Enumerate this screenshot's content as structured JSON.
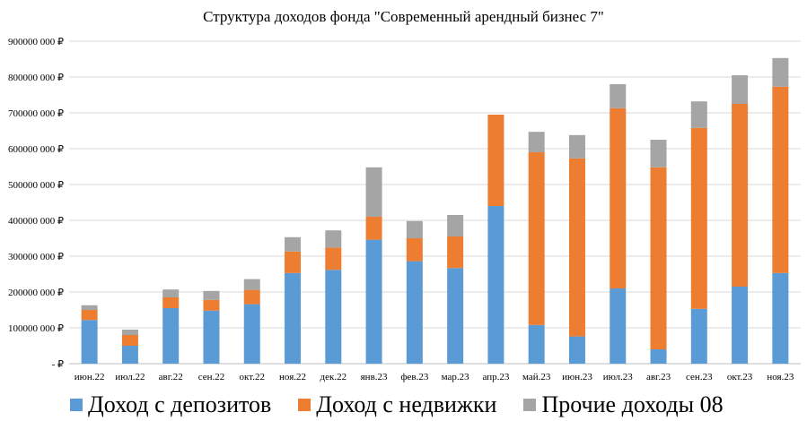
{
  "chart_data": {
    "type": "bar",
    "stacked": true,
    "title": "Структура доходов фонда \"Современный арендный бизнес 7\"",
    "xlabel": "",
    "ylabel": "",
    "ylim": [
      0,
      900000
    ],
    "y_ticks": [
      0,
      100000,
      200000,
      300000,
      400000,
      500000,
      600000,
      700000,
      800000,
      900000
    ],
    "y_tick_labels": [
      "-  ₽",
      "100000 000 ₽",
      "200000 000 ₽",
      "300000 000 ₽",
      "400000 000 ₽",
      "500000 000 ₽",
      "600000 000 ₽",
      "700000 000 ₽",
      "800000 000 ₽",
      "900000 000 ₽"
    ],
    "grid": true,
    "legend_position": "bottom",
    "categories": [
      "июн.22",
      "июл.22",
      "авг.22",
      "сен.22",
      "окт.22",
      "ноя.22",
      "дек.22",
      "янв.23",
      "фев.23",
      "мар.23",
      "апр.23",
      "май.23",
      "июн.23",
      "июл.23",
      "авг.23",
      "сен.23",
      "окт.23",
      "ноя.23"
    ],
    "series": [
      {
        "name": "Доход с депозитов",
        "color": "#5B9BD5",
        "values": [
          122000,
          50000,
          155000,
          148000,
          166000,
          253000,
          262000,
          346000,
          286000,
          267000,
          440000,
          108000,
          76000,
          210000,
          40000,
          153000,
          215000,
          253000
        ]
      },
      {
        "name": "Доход с недвижки",
        "color": "#ED7D31",
        "values": [
          28000,
          30000,
          30000,
          30000,
          40000,
          60000,
          62000,
          64000,
          64000,
          88000,
          255000,
          482000,
          497000,
          503000,
          508000,
          505000,
          510000,
          520000
        ]
      },
      {
        "name": "Прочие доходы 08",
        "color": "#A5A5A5",
        "values": [
          13000,
          15000,
          22000,
          25000,
          30000,
          40000,
          48000,
          138000,
          48000,
          60000,
          0,
          57000,
          65000,
          67000,
          77000,
          74000,
          80000,
          80000
        ]
      }
    ]
  }
}
